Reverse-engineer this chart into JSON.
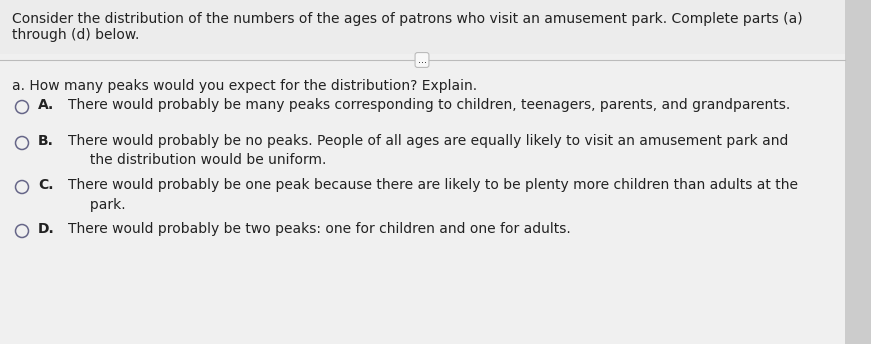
{
  "bg_color": "#f0f0f0",
  "content_bg": "#f8f8f8",
  "header_text_line1": "Consider the distribution of the numbers of the ages of patrons who visit an amusement park. Complete parts (a)",
  "header_text_line2": "through (d) below.",
  "divider_label": "...",
  "question": "a. How many peaks would you expect for the distribution? Explain.",
  "options": [
    {
      "letter": "A.",
      "text": "There would probably be many peaks corresponding to children, teenagers, parents, and grandparents."
    },
    {
      "letter": "B.",
      "text": "There would probably be no peaks. People of all ages are equally likely to visit an amusement park and\n     the distribution would be uniform."
    },
    {
      "letter": "C.",
      "text": "There would probably be one peak because there are likely to be plenty more children than adults at the\n     park."
    },
    {
      "letter": "D.",
      "text": "There would probably be two peaks: one for children and one for adults."
    }
  ],
  "header_fontsize": 10.0,
  "question_fontsize": 10.0,
  "option_fontsize": 10.0,
  "text_color": "#222222",
  "circle_edge_color": "#666688",
  "divider_color": "#bbbbbb",
  "right_bar_color": "#cccccc"
}
